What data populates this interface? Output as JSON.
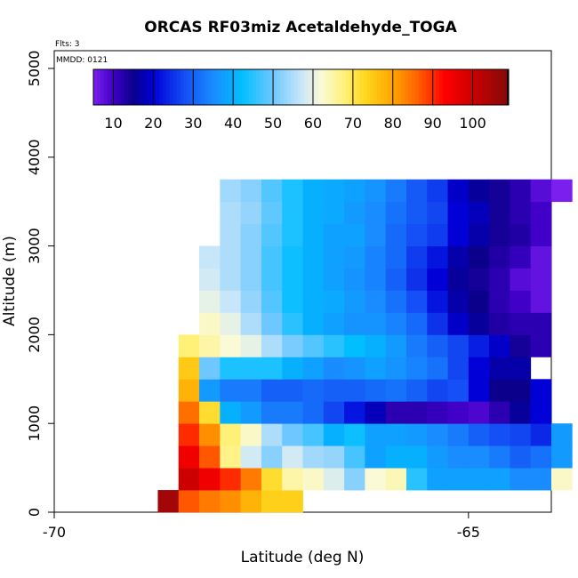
{
  "chart_data": {
    "type": "heatmap",
    "title": "ORCAS RF03miz Acetaldehyde_TOGA",
    "flights_label": "Flts: 3",
    "date_label": "MMDD: 0121",
    "xlabel": "Latitude (deg N)",
    "ylabel": "Altitude (m)",
    "xlim": [
      -70,
      -64
    ],
    "ylim": [
      0,
      5200
    ],
    "x_ticks": [
      -70,
      -65
    ],
    "x_tick_labels": [
      "-70",
      "-65"
    ],
    "y_ticks": [
      0,
      1000,
      2000,
      3000,
      4000,
      5000
    ],
    "y_tick_labels": [
      "0",
      "1000",
      "2000",
      "3000",
      "4000",
      "5000"
    ],
    "colorbar": {
      "range": [
        5,
        109
      ],
      "ticks": [
        10,
        20,
        30,
        40,
        50,
        60,
        70,
        80,
        90,
        100
      ],
      "tick_labels": [
        "10",
        "20",
        "30",
        "40",
        "50",
        "60",
        "70",
        "80",
        "90",
        "100"
      ]
    },
    "bin_width_deg": 0.25,
    "bin_height_m": 250,
    "lat_start": -68.75,
    "alt_start": 0,
    "rows": [
      {
        "row": 0,
        "start_col": 0,
        "values": [
          105,
          87,
          84,
          82,
          78,
          74,
          74,
          null,
          null,
          null,
          null,
          null,
          null,
          null,
          null,
          null,
          null,
          null,
          null,
          null
        ]
      },
      {
        "row": 1,
        "start_col": 1,
        "values": [
          100,
          95,
          90,
          84,
          72,
          65,
          63,
          59,
          52,
          62,
          64,
          45,
          38,
          38,
          38,
          38,
          35,
          35,
          63
        ]
      },
      {
        "row": 2,
        "start_col": 1,
        "values": [
          95,
          87,
          67,
          58,
          52,
          58,
          54,
          53,
          47,
          38,
          40,
          40,
          37,
          35,
          35,
          33,
          30,
          32,
          37
        ]
      },
      {
        "row": 3,
        "start_col": 1,
        "values": [
          90,
          82,
          68,
          63,
          55,
          50,
          47,
          40,
          43,
          38,
          38,
          37,
          35,
          33,
          30,
          28,
          27,
          24,
          37
        ]
      },
      {
        "row": 4,
        "start_col": 1,
        "values": [
          85,
          72,
          40,
          37,
          33,
          33,
          31,
          27,
          22,
          18,
          12,
          12,
          11,
          10,
          9,
          12,
          16,
          20
        ]
      },
      {
        "row": 5,
        "start_col": 1,
        "values": [
          78,
          37,
          33,
          33,
          30,
          30,
          31,
          30,
          30,
          31,
          32,
          30,
          27,
          28,
          20,
          15,
          15,
          20
        ]
      },
      {
        "row": 6,
        "start_col": 1,
        "values": [
          75,
          50,
          44,
          44,
          44,
          40,
          38,
          35,
          36,
          38,
          36,
          34,
          32,
          27,
          20,
          17,
          17
        ]
      },
      {
        "row": 7,
        "start_col": 1,
        "values": [
          68,
          65,
          62,
          60,
          55,
          51,
          48,
          45,
          42,
          40,
          37,
          33,
          30,
          27,
          23,
          19,
          14,
          12
        ]
      },
      {
        "row": 8,
        "start_col": 2,
        "values": [
          63,
          60,
          55,
          50,
          45,
          40,
          38,
          36,
          36,
          34,
          31,
          25,
          19,
          16,
          13,
          12,
          12
        ]
      },
      {
        "row": 9,
        "start_col": 2,
        "values": [
          60,
          57,
          53,
          48,
          43,
          40,
          39,
          37,
          35,
          32,
          28,
          22,
          17,
          15,
          12,
          10,
          7
        ]
      },
      {
        "row": 10,
        "start_col": 2,
        "values": [
          58,
          55,
          52,
          47,
          43,
          40,
          38,
          36,
          34,
          30,
          25,
          20,
          16,
          14,
          12,
          8,
          7
        ]
      },
      {
        "row": 11,
        "start_col": 2,
        "values": [
          57,
          55,
          52,
          47,
          43,
          40,
          38,
          37,
          34,
          31,
          26,
          22,
          17,
          15,
          13,
          11,
          7
        ]
      },
      {
        "row": 12,
        "start_col": 3,
        "values": [
          55,
          52,
          48,
          44,
          40,
          38,
          38,
          35,
          31,
          28,
          26,
          20,
          17,
          14,
          13,
          10
        ]
      },
      {
        "row": 13,
        "start_col": 3,
        "values": [
          55,
          53,
          49,
          44,
          40,
          39,
          37,
          35,
          32,
          29,
          27,
          20,
          18,
          14,
          12,
          10
        ]
      },
      {
        "row": 14,
        "start_col": 3,
        "values": [
          54,
          52,
          48,
          44,
          40,
          39,
          38,
          36,
          33,
          29,
          26,
          19,
          16,
          14,
          12,
          8,
          5
        ]
      }
    ]
  }
}
